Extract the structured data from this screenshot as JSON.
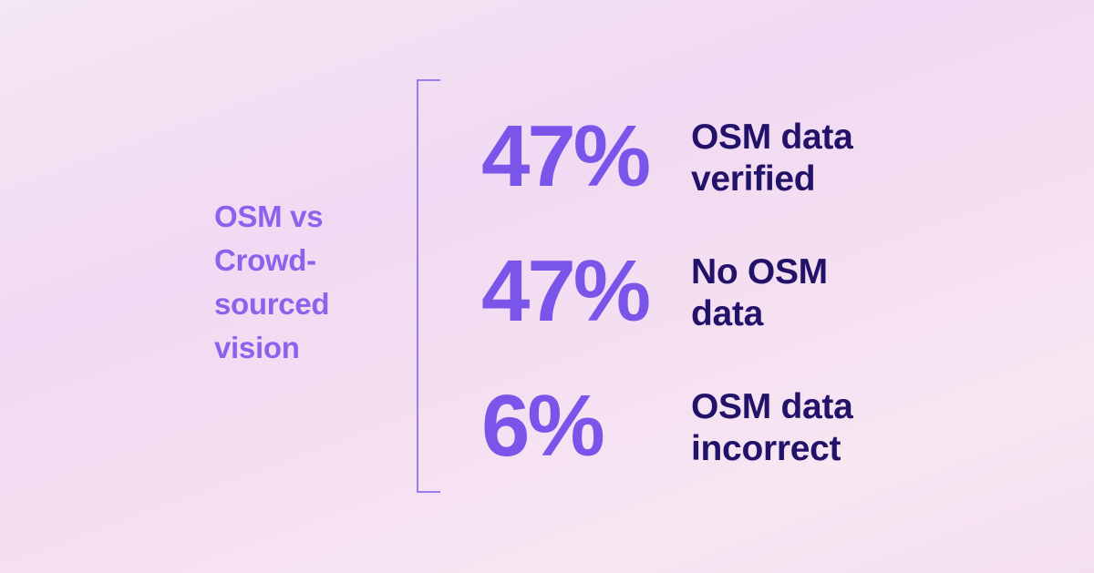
{
  "side_label": {
    "lines": [
      "OSM vs",
      "Crowd-",
      "sourced",
      "vision"
    ]
  },
  "stats": [
    {
      "value": "47%",
      "lines": [
        "OSM data",
        "verified"
      ]
    },
    {
      "value": "47%",
      "lines": [
        "No OSM",
        "data"
      ]
    },
    {
      "value": "6%",
      "lines": [
        "OSM data",
        "incorrect"
      ]
    }
  ],
  "colors": {
    "accent": "#7a55ea",
    "label": "#8c62ec",
    "text_dark": "#23126a",
    "bracket": "#9a7cf0"
  }
}
